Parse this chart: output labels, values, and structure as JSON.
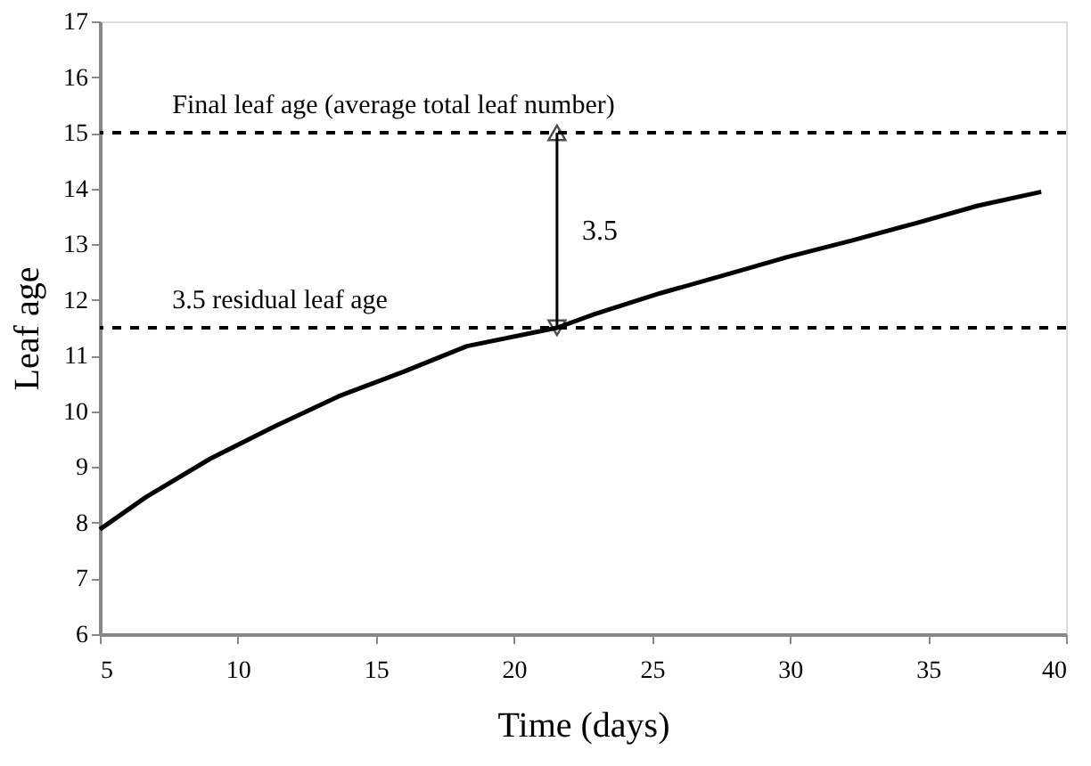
{
  "chart_data": {
    "type": "line",
    "xlabel": "Time (days)",
    "ylabel": "Leaf age",
    "x": [
      5,
      6.67,
      9,
      11.33,
      13.65,
      16,
      18.3,
      21.56,
      22.95,
      25.3,
      27.6,
      29.9,
      32.2,
      34.5,
      36.8,
      39.1
    ],
    "series": [
      {
        "color": "#000000",
        "values": [
          7.88,
          8.46,
          9.15,
          9.73,
          10.27,
          10.71,
          11.17,
          11.5,
          11.75,
          12.12,
          12.44,
          12.77,
          13.06,
          13.37,
          13.69,
          13.94
        ]
      }
    ],
    "xlim": [
      5,
      40
    ],
    "xticks": [
      5,
      10,
      15,
      20,
      25,
      30,
      35,
      40
    ],
    "ylim": [
      6,
      17
    ],
    "yticks": [
      6,
      7,
      8,
      9,
      10,
      11,
      12,
      13,
      14,
      15,
      16,
      17
    ],
    "ref_lines": [
      {
        "axis": "y",
        "value": 15,
        "label": "Final leaf age (average total leaf number)",
        "color": "#000000",
        "line_style": "dashed"
      },
      {
        "axis": "y",
        "value": 11.5,
        "label": "3.5 residual leaf age",
        "color": "#000000",
        "line_style": "dashed"
      }
    ],
    "annotations": [
      "3.5"
    ],
    "grid": false,
    "marker": "none",
    "line_style": "solid"
  }
}
